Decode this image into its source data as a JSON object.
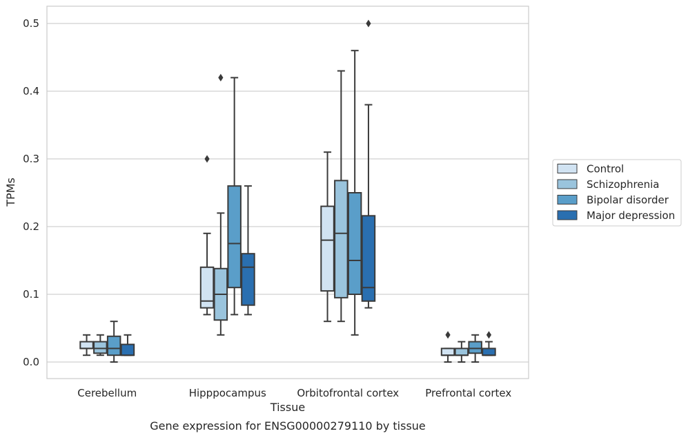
{
  "chart_data": {
    "type": "box",
    "xlabel": "Tissue",
    "ylabel": "TPMs",
    "caption": "Gene expression for ENSG00000279110 by tissue",
    "ylim": [
      -0.025,
      0.525
    ],
    "yticks": [
      0.0,
      0.1,
      0.2,
      0.3,
      0.4,
      0.5
    ],
    "ytick_labels": [
      "0.0",
      "0.1",
      "0.2",
      "0.3",
      "0.4",
      "0.5"
    ],
    "grid": true,
    "legend_position": "right",
    "categories": [
      "Cerebellum",
      "Hipppocampus",
      "Orbitofrontal cortex",
      "Prefrontal cortex"
    ],
    "series": [
      {
        "name": "Control",
        "color": "#d1e3f2",
        "boxes": [
          {
            "whislo": 0.01,
            "q1": 0.02,
            "med": 0.02,
            "q3": 0.03,
            "whishi": 0.04,
            "fliers": []
          },
          {
            "whislo": 0.07,
            "q1": 0.08,
            "med": 0.09,
            "q3": 0.14,
            "whishi": 0.19,
            "fliers": [
              0.3
            ]
          },
          {
            "whislo": 0.06,
            "q1": 0.105,
            "med": 0.18,
            "q3": 0.23,
            "whishi": 0.31,
            "fliers": []
          },
          {
            "whislo": 0.0,
            "q1": 0.01,
            "med": 0.01,
            "q3": 0.02,
            "whishi": 0.02,
            "fliers": [
              0.04
            ]
          }
        ]
      },
      {
        "name": "Schizophrenia",
        "color": "#9ac4dd",
        "boxes": [
          {
            "whislo": 0.01,
            "q1": 0.013,
            "med": 0.02,
            "q3": 0.03,
            "whishi": 0.04,
            "fliers": []
          },
          {
            "whislo": 0.04,
            "q1": 0.062,
            "med": 0.1,
            "q3": 0.138,
            "whishi": 0.22,
            "fliers": [
              0.42
            ]
          },
          {
            "whislo": 0.06,
            "q1": 0.095,
            "med": 0.19,
            "q3": 0.268,
            "whishi": 0.43,
            "fliers": []
          },
          {
            "whislo": 0.0,
            "q1": 0.01,
            "med": 0.01,
            "q3": 0.02,
            "whishi": 0.03,
            "fliers": []
          }
        ]
      },
      {
        "name": "Bipolar disorder",
        "color": "#5a9ec9",
        "boxes": [
          {
            "whislo": 0.0,
            "q1": 0.01,
            "med": 0.02,
            "q3": 0.038,
            "whishi": 0.06,
            "fliers": []
          },
          {
            "whislo": 0.07,
            "q1": 0.11,
            "med": 0.175,
            "q3": 0.26,
            "whishi": 0.42,
            "fliers": []
          },
          {
            "whislo": 0.04,
            "q1": 0.1,
            "med": 0.15,
            "q3": 0.25,
            "whishi": 0.46,
            "fliers": []
          },
          {
            "whislo": 0.0,
            "q1": 0.013,
            "med": 0.02,
            "q3": 0.03,
            "whishi": 0.04,
            "fliers": []
          }
        ]
      },
      {
        "name": "Major depression",
        "color": "#2a6fb0",
        "boxes": [
          {
            "whislo": 0.01,
            "q1": 0.01,
            "med": 0.01,
            "q3": 0.026,
            "whishi": 0.04,
            "fliers": []
          },
          {
            "whislo": 0.07,
            "q1": 0.084,
            "med": 0.14,
            "q3": 0.16,
            "whishi": 0.26,
            "fliers": []
          },
          {
            "whislo": 0.08,
            "q1": 0.09,
            "med": 0.11,
            "q3": 0.216,
            "whishi": 0.38,
            "fliers": [
              0.5
            ]
          },
          {
            "whislo": 0.01,
            "q1": 0.01,
            "med": 0.01,
            "q3": 0.02,
            "whishi": 0.03,
            "fliers": [
              0.04
            ]
          }
        ]
      }
    ]
  }
}
